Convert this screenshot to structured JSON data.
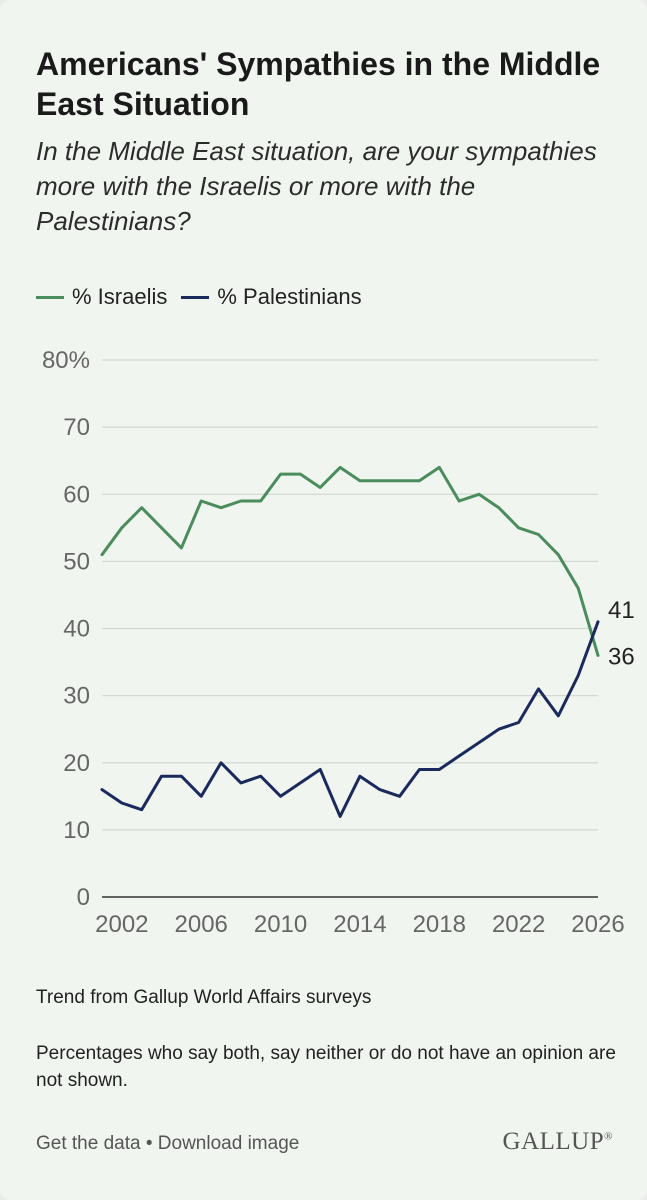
{
  "header": {
    "title": "Americans' Sympathies in the Middle East Situation",
    "subtitle": "In the Middle East situation, are your sympathies more with the Israelis or more with the Palestinians?"
  },
  "legend": {
    "israelis": "% Israelis",
    "palestinians": "% Palestinians"
  },
  "colors": {
    "israelis": "#4a8c5c",
    "palestinians": "#1b2a5c",
    "grid": "#d3d8d2",
    "axis": "#333333"
  },
  "chart_data": {
    "type": "line",
    "title": "Americans' Sympathies in the Middle East Situation",
    "xlabel": "",
    "ylabel": "",
    "xlim": [
      2001,
      2026
    ],
    "ylim": [
      0,
      80
    ],
    "yticks": [
      {
        "value": 0,
        "label": "0"
      },
      {
        "value": 10,
        "label": "10"
      },
      {
        "value": 20,
        "label": "20"
      },
      {
        "value": 30,
        "label": "30"
      },
      {
        "value": 40,
        "label": "40"
      },
      {
        "value": 50,
        "label": "50"
      },
      {
        "value": 60,
        "label": "60"
      },
      {
        "value": 70,
        "label": "70"
      },
      {
        "value": 80,
        "label": "80%"
      }
    ],
    "xticks": [
      {
        "value": 2002,
        "label": "2002"
      },
      {
        "value": 2006,
        "label": "2006"
      },
      {
        "value": 2010,
        "label": "2010"
      },
      {
        "value": 2014,
        "label": "2014"
      },
      {
        "value": 2018,
        "label": "2018"
      },
      {
        "value": 2022,
        "label": "2022"
      },
      {
        "value": 2026,
        "label": "2026"
      }
    ],
    "x": [
      2001,
      2002,
      2003,
      2004,
      2005,
      2006,
      2007,
      2008,
      2009,
      2010,
      2011,
      2012,
      2013,
      2014,
      2015,
      2016,
      2017,
      2018,
      2019,
      2020,
      2021,
      2022,
      2023,
      2024,
      2025,
      2026
    ],
    "series": [
      {
        "key": "israelis",
        "name": "% Israelis",
        "values": [
          51,
          55,
          58,
          55,
          52,
          59,
          58,
          59,
          59,
          63,
          63,
          61,
          64,
          62,
          62,
          62,
          62,
          64,
          59,
          60,
          58,
          55,
          54,
          51,
          46,
          36
        ],
        "end_label": "36"
      },
      {
        "key": "palestinians",
        "name": "% Palestinians",
        "values": [
          16,
          14,
          13,
          18,
          18,
          15,
          20,
          17,
          18,
          15,
          17,
          19,
          12,
          18,
          16,
          15,
          19,
          19,
          21,
          23,
          25,
          26,
          31,
          27,
          33,
          41
        ],
        "end_label": "41"
      }
    ]
  },
  "notes": {
    "source": "Trend from Gallup World Affairs surveys",
    "exclusions": "Percentages who say both, say neither or do not have an opinion are not shown."
  },
  "footer": {
    "get_data": "Get the data",
    "separator": " • ",
    "download": "Download image",
    "logo": "GALLUP",
    "logo_mark": "®"
  }
}
